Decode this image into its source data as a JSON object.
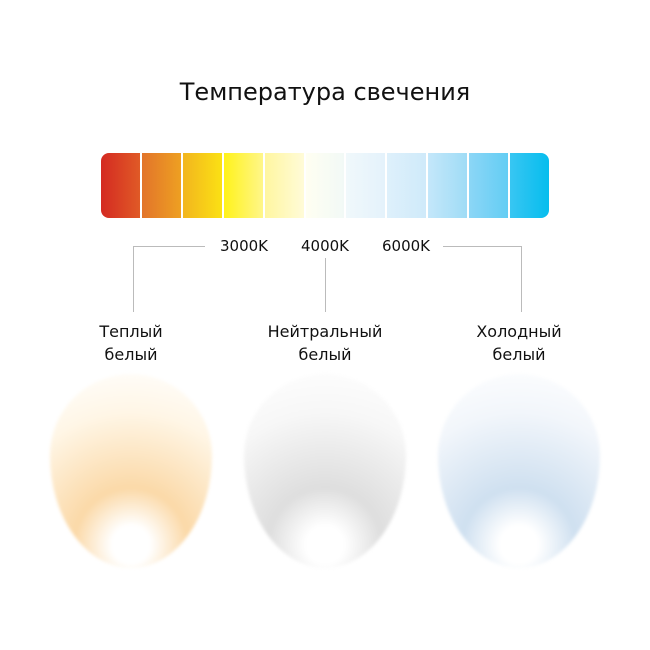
{
  "title": "Температура свечения",
  "scale": {
    "segments": [
      [
        "#d42a22",
        "#e05a26"
      ],
      [
        "#e2742a",
        "#eea022"
      ],
      [
        "#f2b51e",
        "#fbe114"
      ],
      [
        "#fff21a",
        "#fff68a"
      ],
      [
        "#fff6a0",
        "#fffbd8"
      ],
      [
        "#fffff2",
        "#f2f9f6"
      ],
      [
        "#f0f8fb",
        "#e4f2fb"
      ],
      [
        "#def0fb",
        "#cfeafa"
      ],
      [
        "#c4e7fa",
        "#9fdcf6"
      ],
      [
        "#8cd6f6",
        "#63cdf4"
      ],
      [
        "#38c6f2",
        "#06bdee"
      ]
    ]
  },
  "markers": [
    "3000K",
    "4000K",
    "6000K"
  ],
  "lamps": [
    {
      "label_line1": "Теплый",
      "label_line2": "белый",
      "color": "#fbd9a8",
      "edge": "#fff6e6"
    },
    {
      "label_line1": "Нейтральный",
      "label_line2": "белый",
      "color": "#dedede",
      "edge": "#f7f7f7"
    },
    {
      "label_line1": "Холодный",
      "label_line2": "белый",
      "color": "#cfe0f0",
      "edge": "#f2f6fb"
    }
  ]
}
